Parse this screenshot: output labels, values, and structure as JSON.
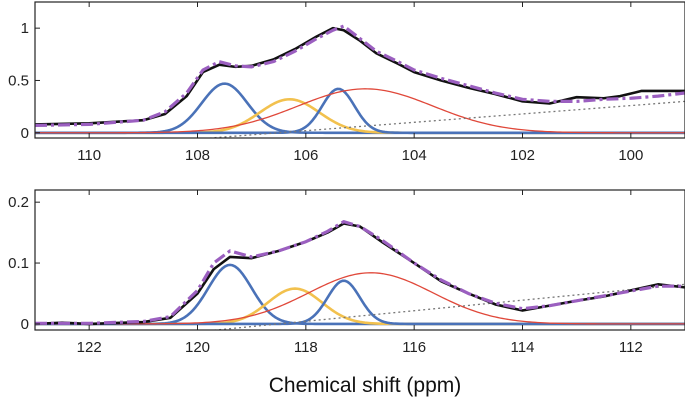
{
  "chart_data": [
    {
      "type": "line",
      "panel": "top",
      "x_reversed": true,
      "xlim": [
        111,
        99
      ],
      "ylim": [
        -0.05,
        1.25
      ],
      "x_ticks": [
        110,
        108,
        106,
        104,
        102,
        100
      ],
      "x_tick_labels": [
        "110",
        "108",
        "106",
        "104",
        "102",
        "100"
      ],
      "y_ticks": [
        0,
        0.5,
        1
      ],
      "y_tick_labels": [
        "0",
        "0.5",
        "1"
      ],
      "xlabel": "",
      "ylabel": "",
      "components": [
        {
          "name": "peak-a",
          "kind": "gaussian",
          "color": "#4a72b8",
          "center": 107.5,
          "height": 0.47,
          "width": 0.42
        },
        {
          "name": "peak-b",
          "kind": "gaussian",
          "color": "#f2c14e",
          "center": 106.3,
          "height": 0.32,
          "width": 0.55
        },
        {
          "name": "peak-c",
          "kind": "gaussian",
          "color": "#4a72b8",
          "center": 105.4,
          "height": 0.42,
          "width": 0.3
        },
        {
          "name": "broad",
          "kind": "gaussian",
          "color": "#e0483a",
          "center": 104.9,
          "height": 0.42,
          "width": 1.25
        },
        {
          "name": "baseline",
          "kind": "linear",
          "color": "#777777",
          "from": [
            106.5,
            0.0
          ],
          "to": [
            99,
            0.3
          ]
        }
      ],
      "series": [
        {
          "name": "experiment",
          "color": "#111111",
          "x": [
            111,
            110,
            109,
            108.6,
            108.2,
            107.9,
            107.6,
            107.3,
            107.0,
            106.6,
            106.2,
            105.8,
            105.5,
            105.3,
            105.0,
            104.7,
            104.3,
            104.0,
            103.5,
            103.0,
            102.5,
            102.0,
            101.5,
            101.0,
            100.5,
            100.2,
            99.8,
            99.4,
            99.0
          ],
          "y": [
            0.08,
            0.09,
            0.12,
            0.18,
            0.35,
            0.58,
            0.65,
            0.63,
            0.64,
            0.7,
            0.8,
            0.92,
            1.0,
            0.98,
            0.88,
            0.76,
            0.66,
            0.58,
            0.5,
            0.43,
            0.37,
            0.3,
            0.28,
            0.34,
            0.33,
            0.35,
            0.4,
            0.4,
            0.4
          ]
        },
        {
          "name": "fit",
          "color": "#9b5fc0",
          "x": [
            111,
            110,
            109,
            108.6,
            108.2,
            107.9,
            107.6,
            107.3,
            107.0,
            106.6,
            106.2,
            105.8,
            105.5,
            105.3,
            105.0,
            104.7,
            104.3,
            104.0,
            103.5,
            103.0,
            102.5,
            102.0,
            101.5,
            101.0,
            100.5,
            100.0,
            99.5,
            99.0
          ],
          "y": [
            0.07,
            0.08,
            0.12,
            0.2,
            0.38,
            0.6,
            0.68,
            0.64,
            0.63,
            0.68,
            0.78,
            0.9,
            0.98,
            1.02,
            0.9,
            0.78,
            0.68,
            0.6,
            0.52,
            0.45,
            0.38,
            0.32,
            0.3,
            0.3,
            0.32,
            0.33,
            0.35,
            0.38
          ]
        }
      ]
    },
    {
      "type": "line",
      "panel": "bottom",
      "x_reversed": true,
      "xlim": [
        123,
        111
      ],
      "ylim": [
        -0.01,
        0.22
      ],
      "x_ticks": [
        122,
        120,
        118,
        116,
        114,
        112
      ],
      "x_tick_labels": [
        "122",
        "120",
        "118",
        "116",
        "114",
        "112"
      ],
      "y_ticks": [
        0,
        0.1,
        0.2
      ],
      "y_tick_labels": [
        "0",
        "0.1",
        "0.2"
      ],
      "xlabel": "Chemical shift (ppm)",
      "ylabel": "",
      "components": [
        {
          "name": "peak-a",
          "kind": "gaussian",
          "color": "#4a72b8",
          "center": 119.4,
          "height": 0.097,
          "width": 0.4
        },
        {
          "name": "peak-b",
          "kind": "gaussian",
          "color": "#f2c14e",
          "center": 118.2,
          "height": 0.058,
          "width": 0.5
        },
        {
          "name": "peak-c",
          "kind": "gaussian",
          "color": "#4a72b8",
          "center": 117.3,
          "height": 0.071,
          "width": 0.3
        },
        {
          "name": "broad",
          "kind": "gaussian",
          "color": "#e0483a",
          "center": 116.8,
          "height": 0.084,
          "width": 1.15
        },
        {
          "name": "baseline",
          "kind": "linear",
          "color": "#777777",
          "from": [
            118.5,
            0.0
          ],
          "to": [
            111,
            0.065
          ]
        }
      ],
      "series": [
        {
          "name": "experiment",
          "color": "#111111",
          "x": [
            123,
            122.5,
            122,
            121,
            120.5,
            120.0,
            119.7,
            119.4,
            119.0,
            118.5,
            118.0,
            117.6,
            117.3,
            117.0,
            116.6,
            116.0,
            115.5,
            115.0,
            114.5,
            114.0,
            113.5,
            113.0,
            112.5,
            112.0,
            111.5,
            111.0
          ],
          "y": [
            0.0,
            0.002,
            0.0,
            0.003,
            0.01,
            0.05,
            0.09,
            0.11,
            0.108,
            0.12,
            0.135,
            0.15,
            0.165,
            0.16,
            0.135,
            0.1,
            0.07,
            0.05,
            0.032,
            0.022,
            0.03,
            0.038,
            0.045,
            0.055,
            0.065,
            0.06
          ]
        },
        {
          "name": "fit",
          "color": "#9b5fc0",
          "x": [
            123,
            122,
            121,
            120.5,
            120.0,
            119.7,
            119.4,
            119.0,
            118.5,
            118.0,
            117.6,
            117.3,
            117.0,
            116.6,
            116.0,
            115.5,
            115.0,
            114.5,
            114.0,
            113.5,
            113.0,
            112.5,
            112.0,
            111.5,
            111.0
          ],
          "y": [
            0.001,
            0.001,
            0.004,
            0.012,
            0.055,
            0.1,
            0.12,
            0.11,
            0.12,
            0.135,
            0.152,
            0.168,
            0.16,
            0.138,
            0.1,
            0.072,
            0.05,
            0.034,
            0.025,
            0.03,
            0.038,
            0.046,
            0.054,
            0.062,
            0.062
          ]
        }
      ]
    }
  ]
}
